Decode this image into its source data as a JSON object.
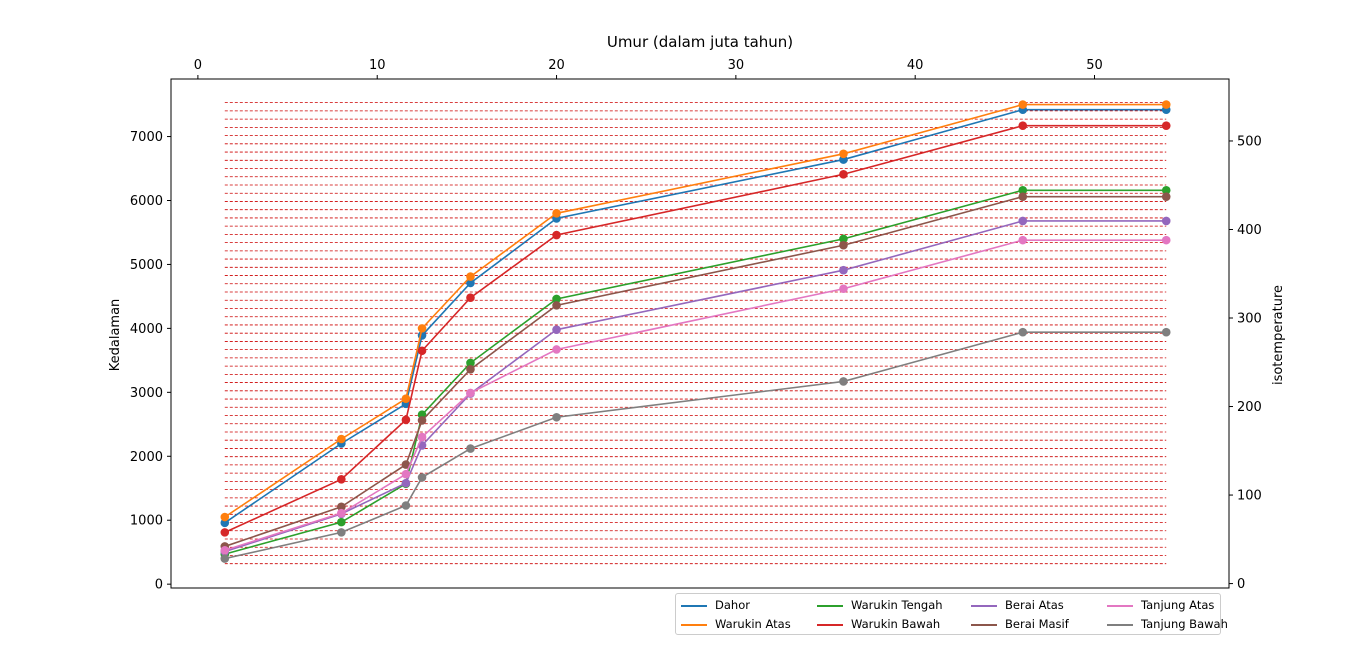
{
  "chart_data": {
    "type": "line",
    "title": "",
    "xlabel": "Umur (dalam juta tahun)",
    "ylabel": "Kedalaman",
    "y2label": "isotemperature",
    "x_axis_position": "top",
    "xlim": [
      -1.5,
      57.5
    ],
    "ylim": [
      -60,
      7900
    ],
    "y2lim": [
      -5,
      570
    ],
    "xticks": [
      0,
      10,
      20,
      30,
      40,
      50
    ],
    "yticks": [
      0,
      1000,
      2000,
      3000,
      4000,
      5000,
      6000,
      7000
    ],
    "y2ticks": [
      0,
      100,
      200,
      300,
      400,
      500
    ],
    "isotherms": {
      "color": "#cc0000",
      "style": "dashed",
      "x_range": [
        1.5,
        54
      ],
      "y_start": 320,
      "y_end": 7530,
      "count": 57
    },
    "x": [
      1.5,
      8,
      11.6,
      12.5,
      15.2,
      20,
      36,
      46,
      54
    ],
    "series": [
      {
        "name": "Dahor",
        "color": "#1f77b4",
        "values": [
          960,
          2200,
          2820,
          3890,
          4710,
          5720,
          6640,
          7420,
          7420
        ]
      },
      {
        "name": "Warukin Atas",
        "color": "#ff7f0e",
        "values": [
          1050,
          2270,
          2900,
          4000,
          4810,
          5800,
          6730,
          7500,
          7500
        ]
      },
      {
        "name": "Warukin Tengah",
        "color": "#2ca02c",
        "values": [
          470,
          970,
          1570,
          2650,
          3460,
          4460,
          5400,
          6160,
          6160
        ]
      },
      {
        "name": "Warukin Bawah",
        "color": "#d62728",
        "values": [
          810,
          1640,
          2570,
          3650,
          4480,
          5460,
          6410,
          7170,
          7170
        ]
      },
      {
        "name": "Berai Atas",
        "color": "#9467bd",
        "values": [
          510,
          1100,
          1580,
          2170,
          2980,
          3980,
          4910,
          5680,
          5680
        ]
      },
      {
        "name": "Berai Masif",
        "color": "#8c564b",
        "values": [
          590,
          1210,
          1870,
          2560,
          3360,
          4360,
          5300,
          6060,
          6060
        ]
      },
      {
        "name": "Tanjung Atas",
        "color": "#e377c2",
        "values": [
          530,
          1110,
          1720,
          2300,
          2990,
          3670,
          4620,
          5380,
          5380
        ]
      },
      {
        "name": "Tanjung Bawah",
        "color": "#7f7f7f",
        "values": [
          400,
          810,
          1230,
          1670,
          2120,
          2610,
          3170,
          3940,
          3940
        ]
      }
    ],
    "legend_position": "below-right"
  }
}
